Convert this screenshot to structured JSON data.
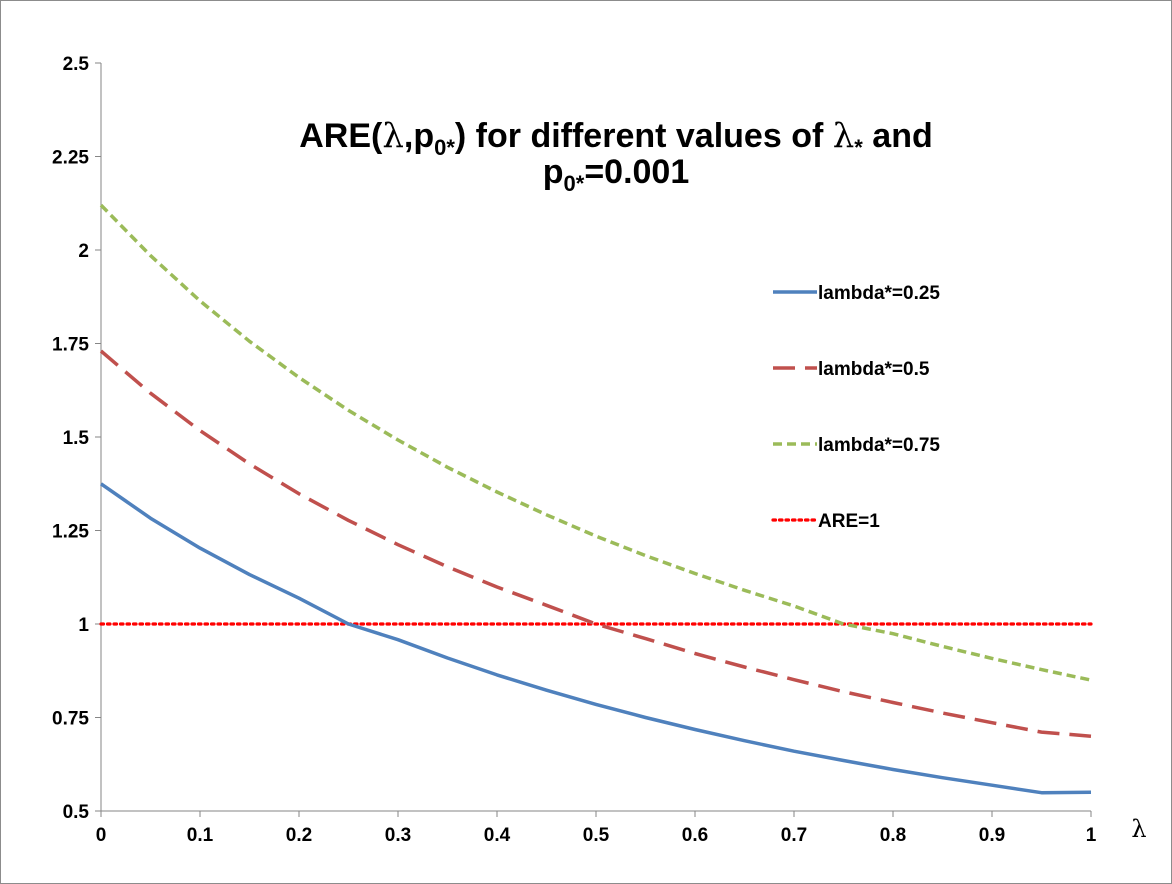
{
  "chart_data": {
    "type": "line",
    "title_parts": {
      "a": "ARE(",
      "lam1": "λ",
      "b": ",p",
      "sub1": "0*",
      "c": ") for different values of ",
      "lam2": "λ",
      "sub2": "*",
      "d": " and",
      "e": "p",
      "sub3": "0*",
      "f": "=0.001"
    },
    "xlabel": "λ",
    "ylabel": "",
    "xlim": [
      0,
      1
    ],
    "ylim": [
      0.5,
      2.5
    ],
    "x_ticks": [
      "0",
      "0.1",
      "0.2",
      "0.3",
      "0.4",
      "0.5",
      "0.6",
      "0.7",
      "0.8",
      "0.9",
      "1"
    ],
    "y_ticks": [
      "0.5",
      "0.75",
      "1",
      "1.25",
      "1.5",
      "1.75",
      "2",
      "2.25",
      "2.5"
    ],
    "legend_position": "right",
    "x": [
      0,
      0.05,
      0.1,
      0.15,
      0.2,
      0.25,
      0.3,
      0.35,
      0.4,
      0.45,
      0.5,
      0.55,
      0.6,
      0.65,
      0.7,
      0.75,
      0.8,
      0.85,
      0.9,
      0.95,
      1
    ],
    "series": [
      {
        "name": "lambda*=0.25",
        "color": "#4f81bd",
        "dash": "solid",
        "values": [
          1.375,
          1.283,
          1.203,
          1.132,
          1.069,
          1.0,
          0.958,
          0.909,
          0.864,
          0.823,
          0.785,
          0.75,
          0.718,
          0.688,
          0.66,
          0.635,
          0.611,
          0.589,
          0.569,
          0.549,
          0.55
        ]
      },
      {
        "name": "lambda*=0.5",
        "color": "#c0504d",
        "dash": "long-dash",
        "values": [
          1.73,
          1.617,
          1.517,
          1.428,
          1.348,
          1.277,
          1.212,
          1.153,
          1.099,
          1.05,
          1.0,
          0.961,
          0.921,
          0.885,
          0.851,
          0.819,
          0.79,
          0.762,
          0.736,
          0.711,
          0.7
        ]
      },
      {
        "name": "lambda*=0.75",
        "color": "#9bbb59",
        "dash": "short-dash",
        "values": [
          2.12,
          1.985,
          1.864,
          1.756,
          1.659,
          1.571,
          1.492,
          1.419,
          1.353,
          1.292,
          1.235,
          1.183,
          1.135,
          1.09,
          1.048,
          1.0,
          0.974,
          0.94,
          0.908,
          0.878,
          0.85
        ]
      },
      {
        "name": "ARE=1",
        "color": "#ff0000",
        "dash": "dotted",
        "values": [
          1,
          1,
          1,
          1,
          1,
          1,
          1,
          1,
          1,
          1,
          1,
          1,
          1,
          1,
          1,
          1,
          1,
          1,
          1,
          1,
          1
        ]
      }
    ]
  }
}
